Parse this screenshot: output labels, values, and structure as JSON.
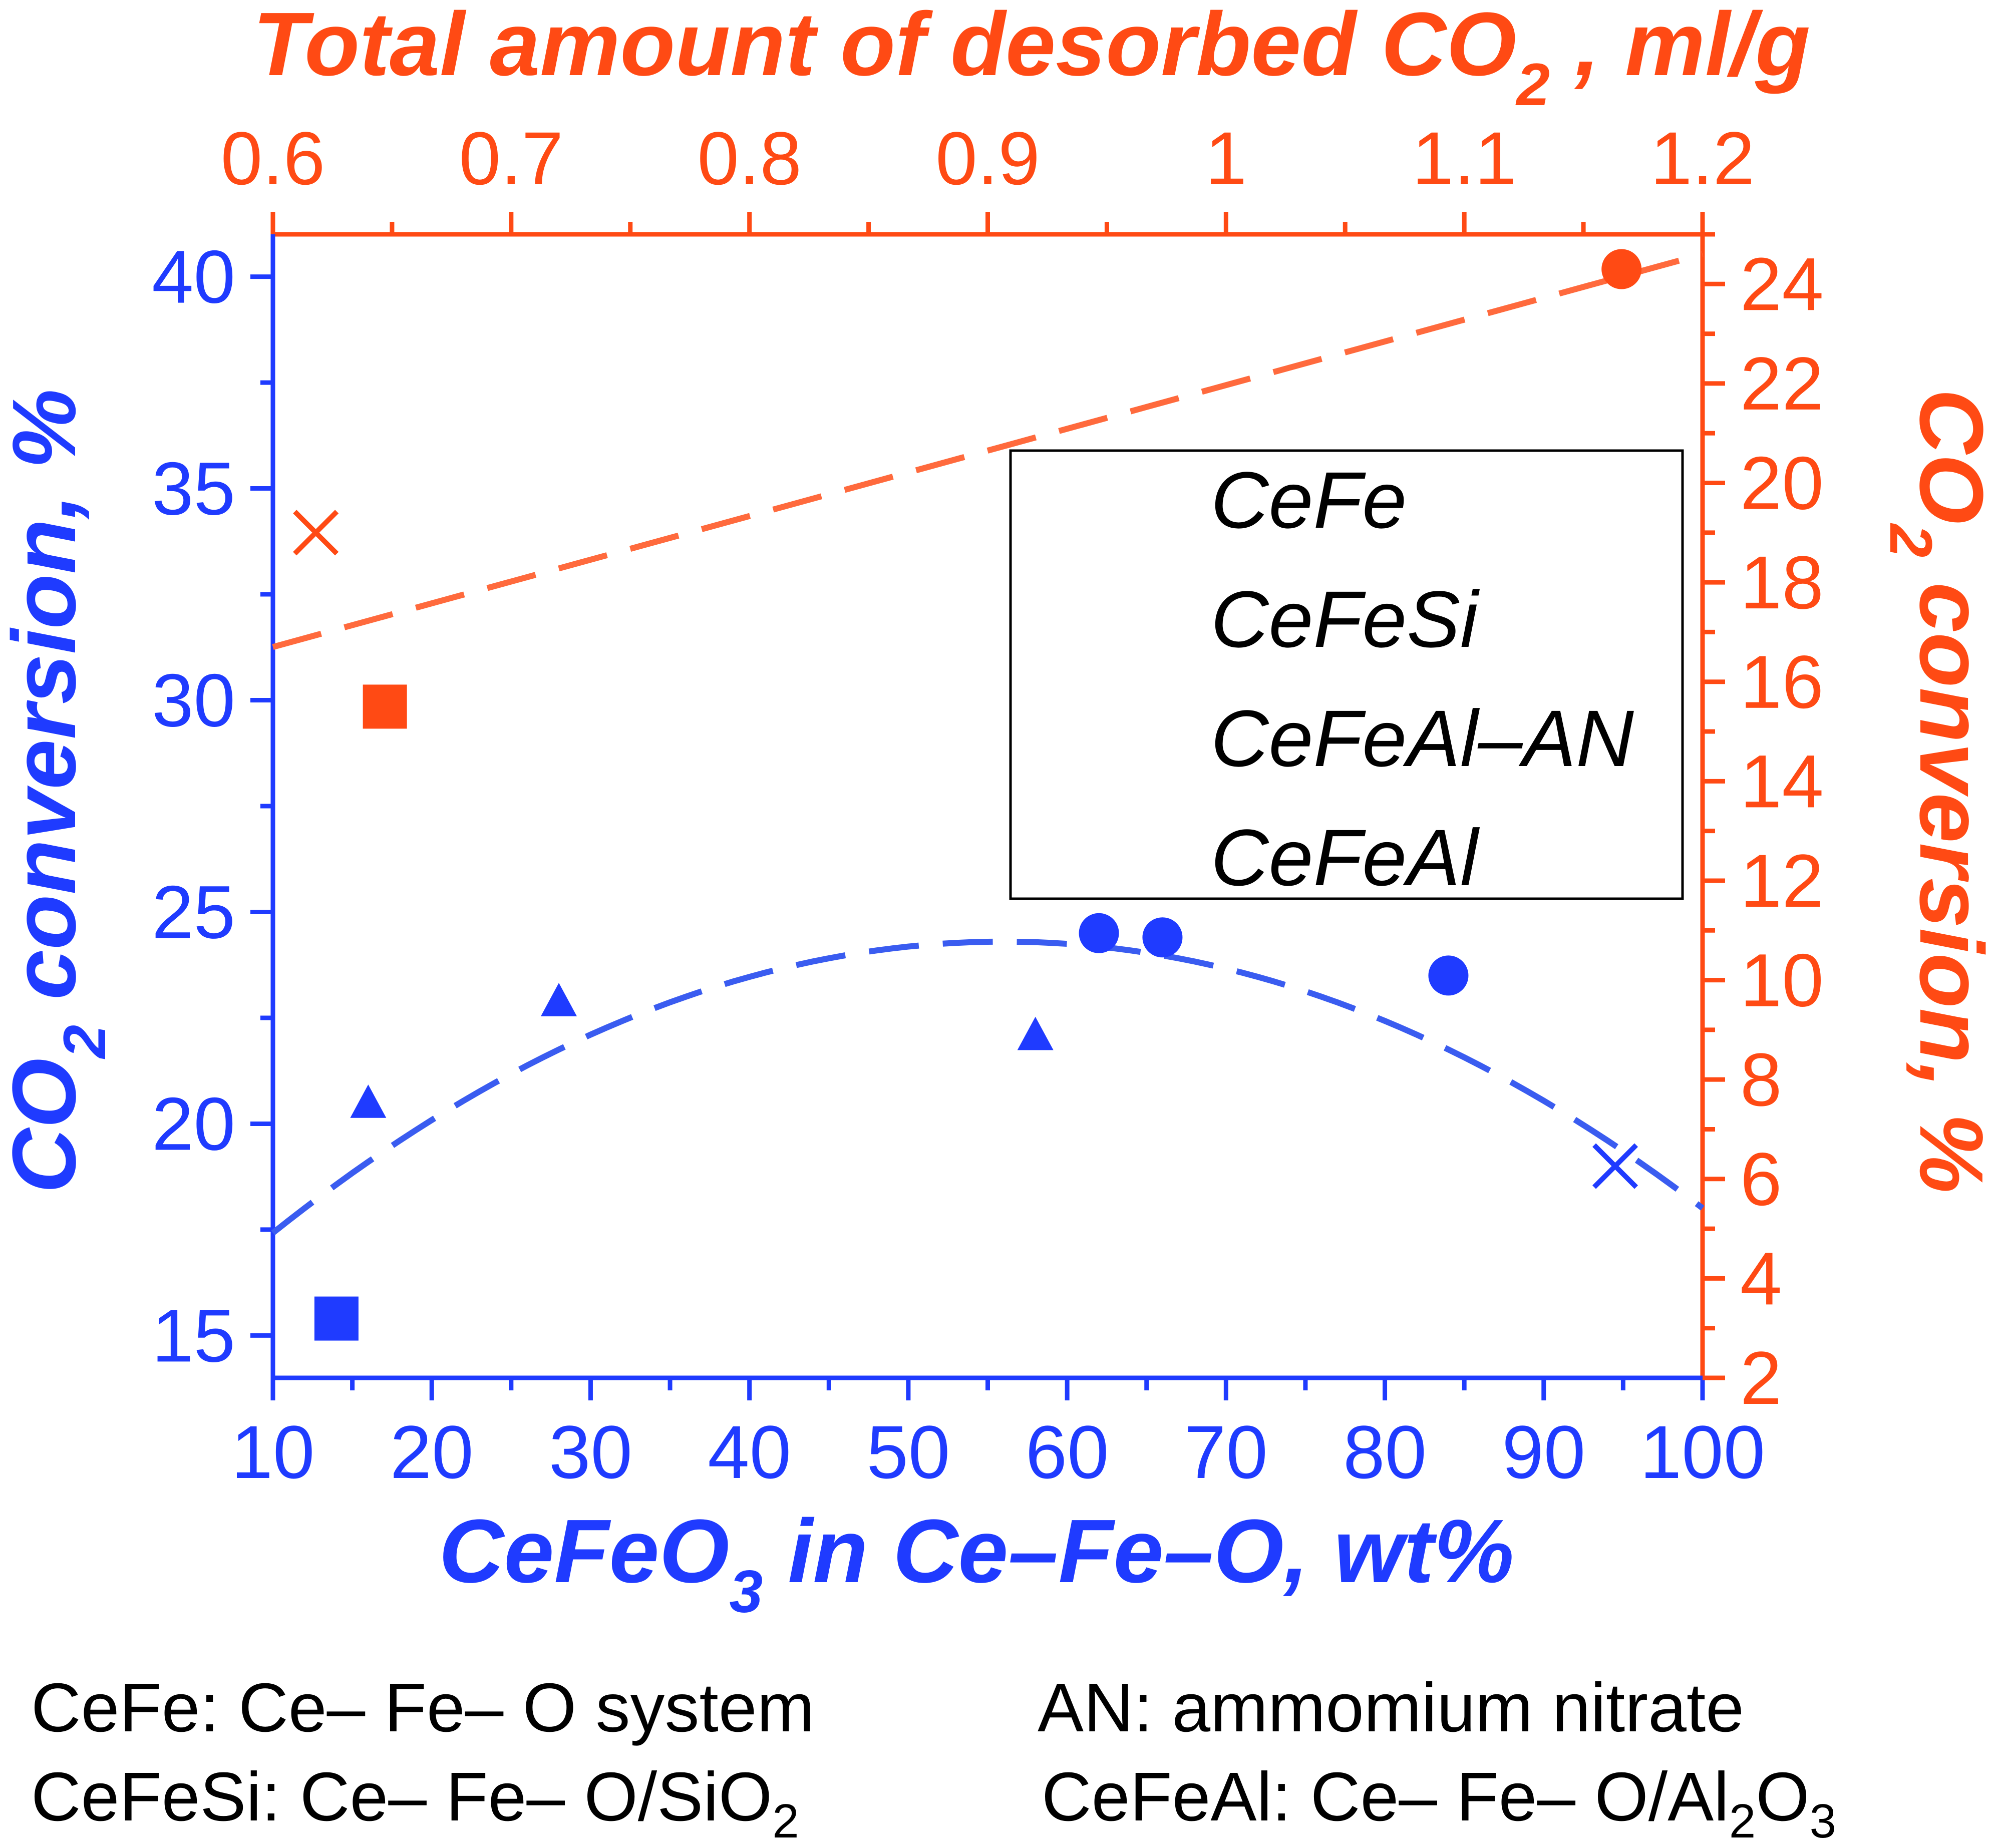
{
  "colors": {
    "blue": "#1f3bff",
    "orange": "#ff4a14",
    "orange_fit": "#ff6a3d",
    "blue_fit": "#3a5cf0",
    "black": "#000000"
  },
  "chart_data": {
    "type": "scatter",
    "x_bottom": {
      "label_prefix": "CeFeO",
      "label_sub": "3",
      "label_suffix": " in Ce",
      "label_rest": "Fe",
      "label_end": "O, wt%",
      "min": 10,
      "max": 100,
      "ticks": [
        "10",
        "20",
        "30",
        "40",
        "50",
        "60",
        "70",
        "80",
        "90",
        "100"
      ],
      "tick_values": [
        10,
        20,
        30,
        40,
        50,
        60,
        70,
        80,
        90,
        100
      ]
    },
    "x_top": {
      "label_main": "Total amount of desorbed CO",
      "label_sub": "2",
      "label_end": " , ml/g",
      "min": 0.6,
      "max": 1.2,
      "ticks": [
        "0.6",
        "0.7",
        "0.8",
        "0.9",
        "1",
        "1.1",
        "1.2"
      ],
      "tick_values": [
        0.6,
        0.7,
        0.8,
        0.9,
        1.0,
        1.1,
        1.2
      ]
    },
    "y_left": {
      "label_main": "CO",
      "label_sub": "2",
      "label_end": " conversion, %",
      "min": 14,
      "max": 41,
      "ticks": [
        "15",
        "20",
        "25",
        "30",
        "35",
        "40"
      ],
      "tick_values": [
        15,
        20,
        25,
        30,
        35,
        40
      ]
    },
    "y_right": {
      "label_main": "CO",
      "label_sub": "2",
      "label_end": " conversion, %",
      "min": 2,
      "max": 25,
      "ticks": [
        "2",
        "4",
        "6",
        "8",
        "10",
        "12",
        "14",
        "16",
        "18",
        "20",
        "22",
        "24"
      ],
      "tick_values": [
        2,
        4,
        6,
        8,
        10,
        12,
        14,
        16,
        18,
        20,
        22,
        24
      ]
    },
    "series_bottom_axis": [
      {
        "name": "CeFe",
        "marker": "x",
        "points": [
          [
            94.5,
            19.0
          ]
        ]
      },
      {
        "name": "CeFeSi",
        "marker": "square",
        "points": [
          [
            14,
            15.4
          ]
        ]
      },
      {
        "name": "CeFeAl–AN",
        "marker": "circle",
        "points": [
          [
            62,
            24.5
          ],
          [
            66,
            24.4
          ],
          [
            84,
            23.5
          ]
        ]
      },
      {
        "name": "CeFeAl",
        "marker": "triangle",
        "points": [
          [
            16,
            20.5
          ],
          [
            28,
            22.9
          ],
          [
            58,
            22.1
          ]
        ]
      }
    ],
    "series_top_axis": [
      {
        "name": "CeFe",
        "marker": "x",
        "points": [
          [
            0.618,
            19.0
          ]
        ]
      },
      {
        "name": "CeFeSi",
        "marker": "square",
        "points": [
          [
            0.647,
            15.5
          ]
        ]
      },
      {
        "name": "CeFeAl–AN",
        "marker": "circle",
        "points": [
          [
            1.166,
            24.3
          ]
        ]
      }
    ],
    "fit_top_axis": {
      "style": "dashed",
      "points": [
        [
          0.6,
          16.7
        ],
        [
          1.2,
          24.6
        ]
      ]
    },
    "fit_bottom_axis": {
      "style": "dashed",
      "vertex_x": 56,
      "vertex_y": 24.3,
      "a": -0.00325,
      "x_range": [
        10,
        100
      ]
    },
    "legend": {
      "placement": "upper-center",
      "entries": [
        "CeFe",
        "CeFeSi",
        "CeFeAl–AN",
        "CeFeAl"
      ]
    },
    "grid": false
  },
  "footnotes": {
    "line1_left": "CeFe: Ce– Fe– O system",
    "line1_right": "AN: ammomium nitrate",
    "line2_left_main": "CeFeSi: Ce– Fe– O/SiO",
    "line2_left_sub": "2",
    "line2_right_main": "CeFeAl: Ce– Fe– O/Al",
    "line2_right_sub1": "2",
    "line2_right_mid": "O",
    "line2_right_sub2": "3"
  }
}
